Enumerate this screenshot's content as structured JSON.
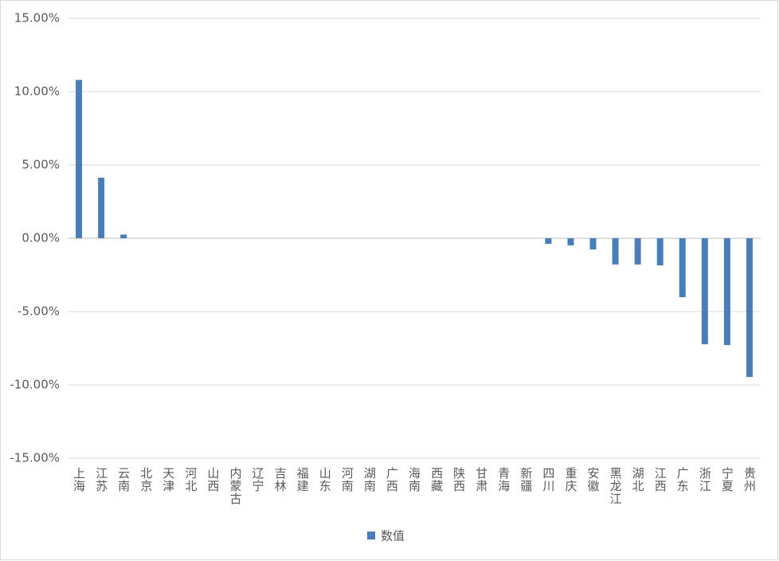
{
  "chart_data": {
    "type": "bar",
    "categories": [
      "上海",
      "江苏",
      "云南",
      "北京",
      "天津",
      "河北",
      "山西",
      "内蒙古",
      "辽宁",
      "吉林",
      "福建",
      "山东",
      "河南",
      "湖南",
      "广西",
      "海南",
      "西藏",
      "陕西",
      "甘肃",
      "青海",
      "新疆",
      "四川",
      "重庆",
      "安徽",
      "黑龙江",
      "湖北",
      "江西",
      "广东",
      "浙江",
      "宁夏",
      "贵州"
    ],
    "series": [
      {
        "name": "数值",
        "color": "#4a7ebb",
        "values": [
          10.8,
          4.13,
          0.25,
          0,
          0,
          0,
          0,
          0,
          0,
          0,
          0,
          0,
          0,
          0,
          0,
          0,
          0,
          0,
          0,
          0,
          0,
          -0.38,
          -0.49,
          -0.76,
          -1.79,
          -1.79,
          -1.85,
          -4.02,
          -7.23,
          -7.28,
          -9.46
        ]
      }
    ],
    "ylim": [
      -15,
      15
    ],
    "yticks": [
      {
        "value": -15,
        "label": "-15.00%"
      },
      {
        "value": -10,
        "label": "-10.00%"
      },
      {
        "value": -5,
        "label": "-5.00%"
      },
      {
        "value": 0,
        "label": "0.00%"
      },
      {
        "value": 5,
        "label": "5.00%"
      },
      {
        "value": 10,
        "label": "10.00%"
      },
      {
        "value": 15,
        "label": "15.00%"
      }
    ],
    "grid": true,
    "legend": "bottom"
  }
}
